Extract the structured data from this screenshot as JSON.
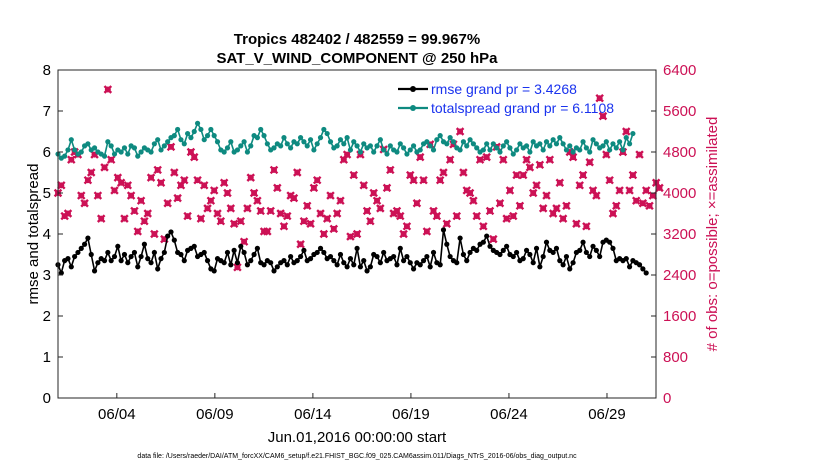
{
  "chart_data": {
    "type": "line",
    "title": "Tropics 482402 / 482559 = 99.967%",
    "subtitle": "SAT_V_WIND_COMPONENT @ 250 hPa",
    "xlabel": "Jun.01,2016 00:00:00 start",
    "ylabel": "rmse and totalspread",
    "ylabel_right": "# of obs: o=possible; ×=assimilated",
    "xlim": [
      1,
      31.5
    ],
    "ylim": [
      0,
      8
    ],
    "ylim_right": [
      0,
      6400
    ],
    "x_ticks": [
      4,
      9,
      14,
      19,
      24,
      29
    ],
    "x_tick_labels": [
      "06/04",
      "06/09",
      "06/14",
      "06/19",
      "06/24",
      "06/29"
    ],
    "y_ticks": [
      "0",
      "1",
      "2",
      "3",
      "4",
      "5",
      "6",
      "7",
      "8"
    ],
    "y_right_ticks": [
      "0",
      "800",
      "1600",
      "2400",
      "3200",
      "4000",
      "4800",
      "5600",
      "6400"
    ],
    "legend_position": "top-right",
    "series": [
      {
        "name": "rmse grand pr = 3.4268",
        "color": "#000000",
        "axis": "left",
        "values": [
          3.25,
          3.05,
          3.35,
          3.4,
          3.2,
          3.45,
          3.55,
          3.65,
          3.75,
          3.9,
          3.5,
          3.1,
          3.3,
          3.4,
          3.35,
          3.55,
          3.35,
          3.45,
          3.7,
          3.35,
          3.5,
          3.3,
          3.45,
          3.55,
          3.2,
          3.45,
          3.75,
          3.4,
          3.3,
          3.55,
          3.15,
          3.4,
          3.55,
          3.95,
          4.05,
          3.85,
          3.55,
          3.5,
          3.35,
          3.6,
          3.65,
          3.7,
          3.45,
          3.5,
          3.55,
          3.35,
          3.15,
          3.1,
          3.4,
          3.35,
          3.3,
          3.55,
          3.25,
          3.6,
          3.3,
          3.7,
          3.55,
          3.25,
          3.35,
          3.5,
          3.65,
          3.3,
          3.25,
          3.35,
          3.3,
          3.1,
          3.2,
          3.3,
          3.35,
          3.25,
          3.45,
          3.3,
          3.35,
          3.45,
          3.6,
          3.35,
          3.4,
          3.5,
          3.55,
          3.65,
          3.55,
          3.4,
          3.45,
          3.35,
          3.25,
          3.5,
          3.3,
          3.2,
          3.4,
          3.25,
          3.65,
          3.2,
          3.35,
          3.1,
          3.2,
          3.5,
          3.45,
          3.3,
          3.55,
          3.35,
          3.4,
          3.45,
          3.25,
          3.65,
          3.35,
          3.45,
          3.3,
          3.15,
          3.3,
          3.25,
          3.35,
          3.45,
          3.2,
          3.55,
          3.3,
          3.25,
          4.1,
          3.75,
          3.45,
          3.35,
          3.3,
          3.9,
          3.5,
          3.35,
          3.55,
          3.65,
          3.6,
          3.75,
          3.8,
          3.95,
          3.7,
          3.6,
          3.55,
          3.5,
          3.6,
          3.7,
          3.5,
          3.45,
          3.55,
          3.35,
          3.4,
          3.6,
          3.5,
          3.3,
          3.65,
          3.2,
          3.45,
          3.8,
          3.6,
          3.55,
          3.65,
          3.35,
          3.25,
          3.45,
          3.15,
          3.3,
          3.55,
          3.6,
          3.8,
          3.55,
          3.45,
          3.7,
          3.6,
          3.45,
          3.8,
          3.85,
          3.8,
          3.65,
          3.35,
          3.4,
          3.35,
          3.4,
          3.2,
          3.35,
          3.3,
          3.25,
          3.15,
          3.05
        ]
      },
      {
        "name": "totalspread grand pr = 6.1108",
        "color": "#0e8a80",
        "axis": "left",
        "values": [
          5.95,
          5.85,
          5.9,
          6.05,
          6.3,
          6.05,
          5.95,
          6.0,
          6.15,
          6.2,
          6.05,
          6.1,
          6.0,
          5.95,
          5.9,
          6.25,
          6.15,
          5.95,
          6.05,
          6.0,
          6.1,
          5.95,
          6.15,
          6.1,
          5.9,
          6.0,
          6.1,
          6.05,
          6.0,
          6.2,
          6.3,
          6.05,
          6.15,
          6.25,
          6.35,
          6.4,
          6.55,
          6.3,
          6.2,
          6.45,
          6.35,
          6.5,
          6.7,
          6.55,
          6.3,
          6.4,
          6.55,
          6.4,
          6.25,
          6.05,
          6.0,
          6.1,
          6.25,
          6.0,
          6.05,
          6.15,
          6.25,
          6.0,
          6.15,
          6.4,
          6.35,
          6.55,
          6.4,
          6.2,
          6.05,
          6.1,
          6.2,
          6.15,
          6.35,
          6.2,
          6.1,
          6.25,
          6.2,
          6.35,
          6.25,
          6.15,
          6.3,
          6.05,
          6.2,
          6.35,
          6.55,
          6.45,
          6.25,
          6.1,
          6.15,
          6.3,
          6.2,
          6.35,
          6.05,
          6.25,
          6.15,
          6.0,
          6.2,
          6.1,
          6.15,
          6.0,
          6.15,
          6.3,
          6.05,
          5.95,
          6.15,
          6.05,
          6.0,
          6.2,
          6.1,
          5.95,
          6.05,
          6.15,
          6.0,
          6.05,
          6.2,
          6.25,
          6.15,
          6.05,
          6.3,
          6.4,
          6.25,
          6.2,
          6.35,
          6.25,
          6.1,
          6.05,
          6.25,
          6.15,
          6.3,
          6.2,
          6.1,
          6.0,
          6.05,
          6.2,
          6.05,
          6.2,
          6.1,
          6.0,
          6.15,
          6.25,
          6.1,
          5.95,
          6.05,
          6.2,
          6.1,
          6.15,
          6.0,
          6.25,
          6.15,
          6.2,
          6.05,
          6.25,
          6.15,
          6.3,
          6.2,
          6.35,
          6.2,
          6.05,
          6.15,
          6.0,
          6.1,
          6.05,
          6.25,
          6.1,
          6.0,
          6.3,
          6.2,
          6.1,
          6.15,
          6.25,
          6.05,
          6.2,
          6.1,
          6.25,
          6.05,
          6.35,
          6.2,
          6.45
        ]
      },
      {
        "name": "# of obs: o=possible; ×=assimilated",
        "color": "#cc1155",
        "axis": "right",
        "values": [
          4000,
          4150,
          3550,
          3600,
          4650,
          4800,
          4750,
          3950,
          3800,
          4250,
          4400,
          4750,
          3950,
          3500,
          4500,
          6020,
          4650,
          4050,
          4300,
          4200,
          3500,
          4150,
          3950,
          3650,
          3250,
          3850,
          3450,
          3600,
          4300,
          3200,
          4450,
          4200,
          3100,
          3800,
          4900,
          4400,
          3900,
          4150,
          4250,
          3550,
          4800,
          4700,
          4250,
          3500,
          4150,
          3700,
          3850,
          4050,
          3600,
          3450,
          4200,
          4000,
          3700,
          3400,
          2550,
          3450,
          3050,
          3700,
          4300,
          4000,
          3850,
          3650,
          3250,
          3250,
          3650,
          4450,
          4100,
          3600,
          3350,
          3550,
          3950,
          3900,
          4400,
          3000,
          3450,
          3750,
          3400,
          4100,
          4250,
          3600,
          3200,
          3500,
          3950,
          3300,
          3600,
          3850,
          4650,
          4750,
          3150,
          4350,
          3200,
          4750,
          4150,
          3650,
          3450,
          4000,
          3850,
          3700,
          4850,
          4100,
          4450,
          3600,
          3650,
          3550,
          3200,
          3350,
          4350,
          4250,
          3800,
          4700,
          4250,
          3250,
          4950,
          3650,
          3550,
          4250,
          4400,
          3400,
          4650,
          4950,
          3550,
          5200,
          4400,
          4050,
          4000,
          3850,
          3550,
          4650,
          3350,
          4700,
          3650,
          3100,
          4900,
          3800,
          4650,
          3500,
          4050,
          3550,
          4350,
          3750,
          4350,
          4650,
          4500,
          4000,
          4150,
          4550,
          3700,
          3950,
          4650,
          3600,
          3700,
          4200,
          3500,
          3750,
          4800,
          4700,
          3400,
          4150,
          4350,
          3350,
          4600,
          4050,
          3950,
          5850,
          5500,
          4750,
          4250,
          3600,
          3750,
          4050,
          4800,
          5200,
          4050,
          4350,
          3850,
          4750,
          3800,
          4050,
          3750,
          3950,
          4200,
          4100
        ]
      }
    ]
  },
  "footer": "data file: /Users/raeder/DAI/ATM_forcXX/CAM6_setup/f.e21.FHIST_BGC.f09_025.CAM6assim.011/Diags_NTrS_2016-06/obs_diag_output.nc"
}
